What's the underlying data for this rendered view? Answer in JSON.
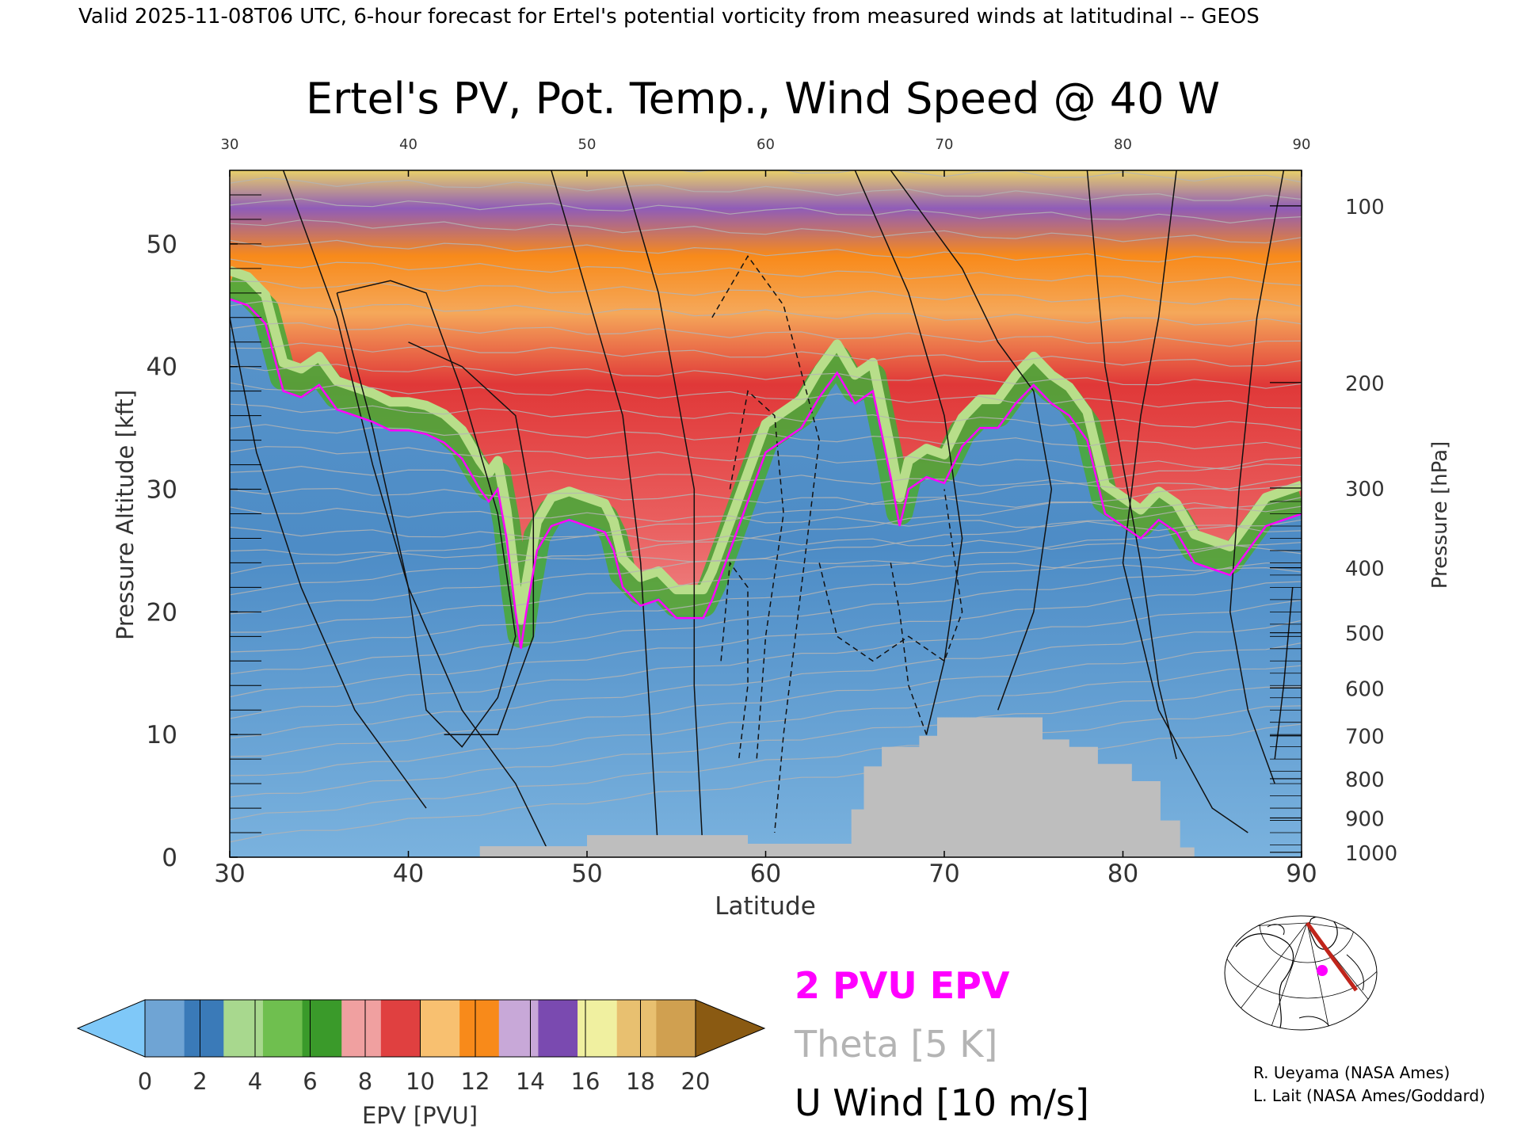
{
  "header": {
    "valid_line": "Valid 2025-11-08T06 UTC, 6-hour forecast for Ertel's potential vorticity from measured winds at latitudinal -- GEOS"
  },
  "chart_data": {
    "type": "heatmap",
    "title": "Ertel's PV, Pot. Temp., Wind Speed @ 40 W",
    "xlabel": "Latitude",
    "ylabel_left": "Pressure Altitude [kft]",
    "ylabel_right": "Pressure [hPa]",
    "xlim": [
      30,
      90
    ],
    "ylim_kft": [
      0,
      56
    ],
    "x_ticks": [
      "30",
      "40",
      "50",
      "60",
      "70",
      "80",
      "90"
    ],
    "y_ticks_kft": [
      "0",
      "10",
      "20",
      "30",
      "40",
      "50"
    ],
    "pressure_ticks": [
      {
        "label": "100",
        "kft": 53.1
      },
      {
        "label": "200",
        "kft": 38.7
      },
      {
        "label": "300",
        "kft": 30.1
      },
      {
        "label": "400",
        "kft": 23.6
      },
      {
        "label": "500",
        "kft": 18.3
      },
      {
        "label": "600",
        "kft": 13.8
      },
      {
        "label": "700",
        "kft": 9.9
      },
      {
        "label": "800",
        "kft": 6.4
      },
      {
        "label": "900",
        "kft": 3.2
      },
      {
        "label": "1000",
        "kft": 0.4
      }
    ],
    "tropopause_2pvu_kft": [
      [
        30,
        45.5
      ],
      [
        31,
        45
      ],
      [
        32,
        43.5
      ],
      [
        33,
        38
      ],
      [
        34,
        37.5
      ],
      [
        35,
        38.5
      ],
      [
        36,
        36.5
      ],
      [
        37,
        36
      ],
      [
        38,
        35.5
      ],
      [
        39,
        34.8
      ],
      [
        40,
        34.8
      ],
      [
        41,
        34.5
      ],
      [
        42,
        33.8
      ],
      [
        43,
        32.5
      ],
      [
        44,
        30
      ],
      [
        44.5,
        29
      ],
      [
        45,
        30
      ],
      [
        45.5,
        26
      ],
      [
        46,
        20
      ],
      [
        46.3,
        17
      ],
      [
        46.6,
        20
      ],
      [
        47.2,
        25
      ],
      [
        48,
        27
      ],
      [
        49,
        27.5
      ],
      [
        50,
        27
      ],
      [
        51,
        26.5
      ],
      [
        51.5,
        25
      ],
      [
        52,
        22
      ],
      [
        53,
        20.5
      ],
      [
        54,
        21
      ],
      [
        55,
        19.5
      ],
      [
        56,
        19.5
      ],
      [
        56.5,
        19.5
      ],
      [
        57,
        21
      ],
      [
        58,
        25
      ],
      [
        59,
        29
      ],
      [
        60,
        33
      ],
      [
        61,
        34
      ],
      [
        62,
        35
      ],
      [
        63,
        37.5
      ],
      [
        64,
        39.5
      ],
      [
        65,
        37
      ],
      [
        66,
        38
      ],
      [
        67,
        31
      ],
      [
        67.5,
        27
      ],
      [
        68,
        30
      ],
      [
        69,
        31
      ],
      [
        70,
        30.5
      ],
      [
        71,
        33.5
      ],
      [
        72,
        35
      ],
      [
        73,
        35
      ],
      [
        74,
        37
      ],
      [
        75,
        38.5
      ],
      [
        76,
        37
      ],
      [
        77,
        36
      ],
      [
        78,
        34
      ],
      [
        79,
        28
      ],
      [
        80,
        27
      ],
      [
        81,
        26
      ],
      [
        82,
        27.5
      ],
      [
        83,
        26.5
      ],
      [
        84,
        24
      ],
      [
        85,
        23.5
      ],
      [
        86,
        23
      ],
      [
        87,
        25
      ],
      [
        88,
        27
      ],
      [
        89,
        27.5
      ],
      [
        90,
        28
      ]
    ],
    "colorbar": {
      "label": "EPV [PVU]",
      "ticks": [
        "0",
        "2",
        "4",
        "6",
        "8",
        "10",
        "12",
        "14",
        "16",
        "18",
        "20"
      ],
      "under_color": "#7fc8f8",
      "over_color": "#8a5a12",
      "colors": [
        "#6fa4d4",
        "#3a7ab8",
        "#a8d88e",
        "#6fbf4f",
        "#3a9a2a",
        "#f0a0a0",
        "#e04040",
        "#f8c070",
        "#f88a1a",
        "#c8a8d8",
        "#7a4ab0",
        "#f0f0a0",
        "#e8c070",
        "#d0a050"
      ]
    },
    "legend": [
      {
        "label": "2 PVU EPV",
        "color": "#ff00ff"
      },
      {
        "label": "Theta [5 K]",
        "color": "#b4b4b4"
      },
      {
        "label": "U Wind [10 m/s]",
        "color": "#000000"
      }
    ]
  },
  "inset_map": {
    "section_color": "#c0251b",
    "marker_color": "#ff00ff"
  },
  "credits": {
    "line1": "R. Ueyama (NASA Ames)",
    "line2": "L. Lait (NASA Ames/Goddard)"
  }
}
